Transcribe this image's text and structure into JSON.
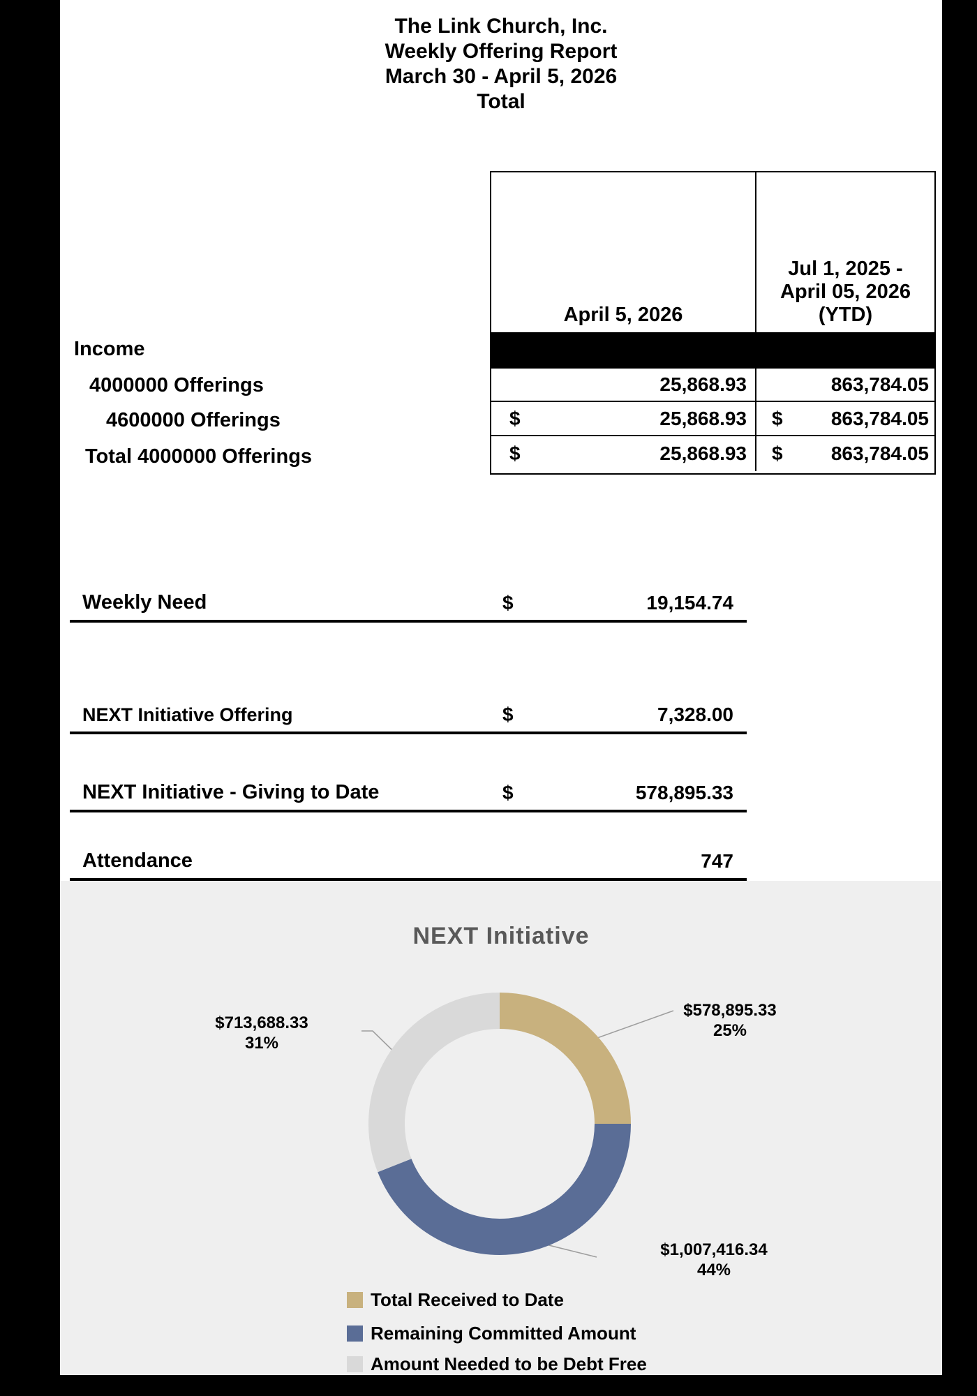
{
  "title_block": {
    "line1": "The Link Church, Inc.",
    "line2": "Weekly Offering Report",
    "line3": "March 30 - April 5, 2026",
    "line4": "Total"
  },
  "table": {
    "col1_header": "April 5, 2026",
    "col2_header_lines": [
      "Jul 1, 2025 -",
      "April 05, 2026",
      "(YTD)"
    ],
    "section_label": "Income",
    "rows": [
      {
        "label": "4000000 Offerings",
        "week_currency": "",
        "week": "25,868.93",
        "ytd_currency": "",
        "ytd": "863,784.05"
      },
      {
        "label": "4600000 Offerings",
        "week_currency": "$",
        "week": "25,868.93",
        "ytd_currency": "$",
        "ytd": "863,784.05"
      },
      {
        "label": "Total 4000000 Offerings",
        "week_currency": "$",
        "week": "25,868.93",
        "ytd_currency": "$",
        "ytd": "863,784.05"
      }
    ]
  },
  "summary": {
    "weekly_need": {
      "label": "Weekly Need",
      "currency": "$",
      "value": "19,154.74"
    },
    "next_offering": {
      "label": "NEXT Initiative Offering",
      "currency": "$",
      "value": "7,328.00"
    },
    "next_giving": {
      "label": "NEXT Initiative - Giving to Date",
      "currency": "$",
      "value": "578,895.33"
    },
    "attendance": {
      "label": "Attendance",
      "value": "747"
    }
  },
  "chart_data": {
    "type": "pie",
    "subtype": "donut",
    "title": "NEXT Initiative",
    "legend_position": "bottom",
    "start_angle_deg": 0,
    "slices": [
      {
        "label": "Total Received to Date",
        "amount": "$578,895.33",
        "value": 578895.33,
        "pct": 25,
        "pct_label": "25%",
        "color": "#c8b17e"
      },
      {
        "label": "Remaining Committed Amount",
        "amount": "$1,007,416.34",
        "value": 1007416.34,
        "pct": 44,
        "pct_label": "44%",
        "color": "#5a6d96"
      },
      {
        "label": "Amount Needed to be Debt Free",
        "amount": "$713,688.33",
        "value": 713688.33,
        "pct": 31,
        "pct_label": "31%",
        "color": "#d9d9d9"
      }
    ]
  }
}
